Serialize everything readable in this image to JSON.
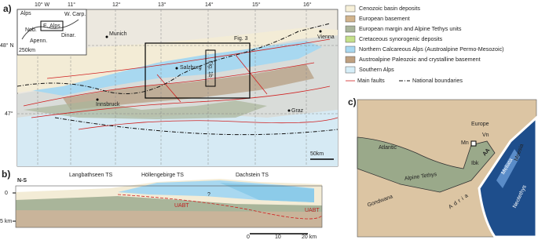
{
  "panel_a": {
    "label": "a)",
    "lon_labels": [
      "10° W",
      "11°",
      "12°",
      "13°",
      "14°",
      "15°",
      "16°"
    ],
    "lat_labels": [
      "48° N",
      "47°"
    ],
    "cities": [
      "Munich",
      "Vienna",
      "Salzburg",
      "Innsbruck",
      "Graz"
    ],
    "boxes": [
      "Fig. 3",
      "Fig. 1b"
    ],
    "scale": "50km",
    "inset": {
      "labels": [
        "Alps",
        "Nob.",
        "E. Alps",
        "W. Carp.",
        "Apenn.",
        "Dinar."
      ],
      "scale": "250km"
    }
  },
  "legend": {
    "items": [
      "Cenozoic basin deposits",
      "European basement",
      "European margin and Alpine Tethys units",
      "Cretaceous synorogenic deposits",
      "Northern Calcareous Alps (Austroalpine Permo-Mesozoic)",
      "Austroalpine Paleozoic and crystalline basement",
      "Southern Alps"
    ],
    "lines": [
      "Main faults",
      "National boundaries"
    ]
  },
  "panel_b": {
    "label": "b)",
    "direction": "N-S",
    "sheets": [
      "Langbathseen TS",
      "Höllengebirge TS",
      "Dachstein TS"
    ],
    "depth_labels": [
      "0",
      "5 km"
    ],
    "faults": [
      "UABT",
      "UABT"
    ],
    "query": "?",
    "scale": [
      "0",
      "10",
      "20 km"
    ]
  },
  "panel_c": {
    "label": "c)",
    "labels": [
      "Europe",
      "Atlantic",
      "Alpine Tethys",
      "Gondwana",
      "Adria",
      "Neotethys",
      "Meliata",
      "Moesia",
      "Mn",
      "Vn",
      "Ibk",
      "AA"
    ]
  }
}
